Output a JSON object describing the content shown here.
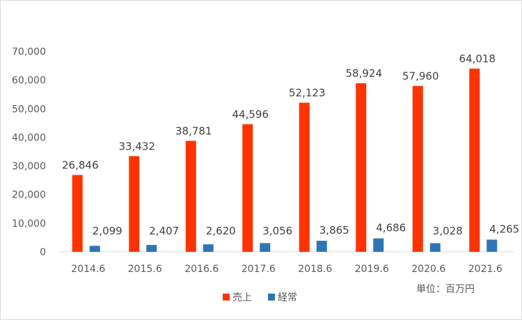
{
  "chart_data": {
    "type": "bar",
    "categories": [
      "2014.6",
      "2015.6",
      "2016.6",
      "2017.6",
      "2018.6",
      "2019.6",
      "2020.6",
      "2021.6"
    ],
    "series": [
      {
        "name": "売上",
        "color": "#ff3300",
        "values": [
          26846,
          33432,
          38781,
          44596,
          52123,
          58924,
          57960,
          64018
        ]
      },
      {
        "name": "経常",
        "color": "#2e75b6",
        "values": [
          2099,
          2407,
          2620,
          3056,
          3865,
          4686,
          3028,
          4265
        ]
      }
    ],
    "ylim": [
      0,
      70000
    ],
    "yticks": [
      0,
      10000,
      20000,
      30000,
      40000,
      50000,
      60000,
      70000
    ],
    "grid": false,
    "legend": "bottom",
    "unit_note": "単位：百万円"
  }
}
